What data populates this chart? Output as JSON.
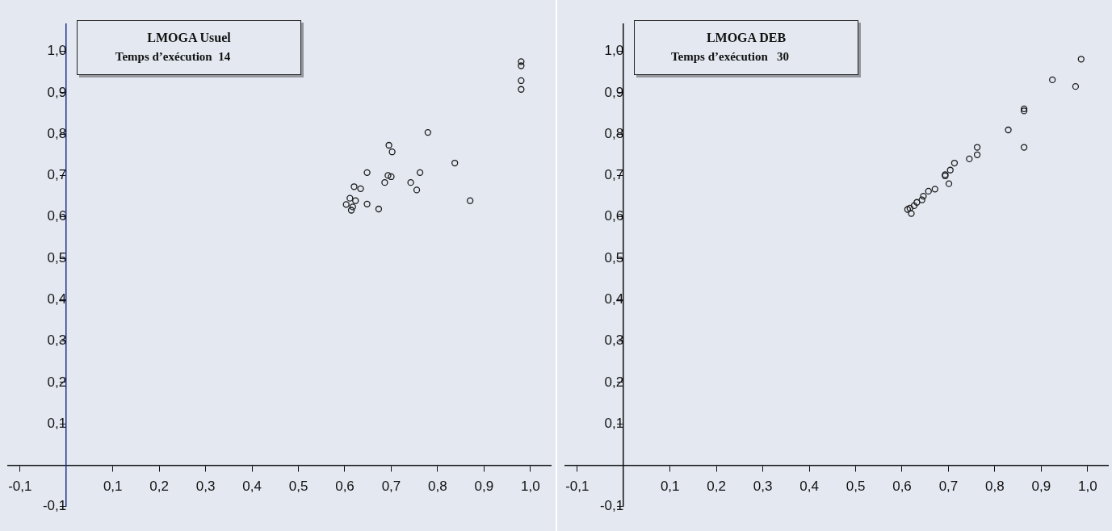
{
  "chart_data": [
    {
      "type": "scatter",
      "title": "LMOGA Usuel",
      "subtitle": "Temps d’exécution  14",
      "grid": false,
      "marker": "circle",
      "xlim": [
        -0.127,
        1.045
      ],
      "ylim": [
        -0.1,
        1.065
      ],
      "xticks": [
        {
          "value": -0.1,
          "label": "-0,1"
        },
        {
          "value": 0.1,
          "label": "0,1"
        },
        {
          "value": 0.2,
          "label": "0,2"
        },
        {
          "value": 0.3,
          "label": "0,3"
        },
        {
          "value": 0.4,
          "label": "0,4"
        },
        {
          "value": 0.5,
          "label": "0,5"
        },
        {
          "value": 0.6,
          "label": "0,6"
        },
        {
          "value": 0.7,
          "label": "0,7"
        },
        {
          "value": 0.8,
          "label": "0,8"
        },
        {
          "value": 0.9,
          "label": "0,9"
        },
        {
          "value": 1.0,
          "label": "1,0"
        }
      ],
      "yticks": [
        {
          "value": -0.1,
          "label": "-0,1"
        },
        {
          "value": 0.1,
          "label": "0,1"
        },
        {
          "value": 0.2,
          "label": "0,2"
        },
        {
          "value": 0.3,
          "label": "0,3"
        },
        {
          "value": 0.4,
          "label": "0,4"
        },
        {
          "value": 0.5,
          "label": "0,5"
        },
        {
          "value": 0.6,
          "label": "0,6"
        },
        {
          "value": 0.7,
          "label": "0,7"
        },
        {
          "value": 0.8,
          "label": "0,8"
        },
        {
          "value": 0.9,
          "label": "0,9"
        },
        {
          "value": 1.0,
          "label": "1,0"
        }
      ],
      "series": [
        {
          "color": "#1a1a1a",
          "x": [
            0.98,
            0.98,
            0.98,
            0.98,
            0.779,
            0.695,
            0.702,
            0.837,
            0.648,
            0.762,
            0.693,
            0.7,
            0.686,
            0.742,
            0.755,
            0.62,
            0.634,
            0.87,
            0.648,
            0.673,
            0.611,
            0.623,
            0.603,
            0.617,
            0.614
          ],
          "values": [
            0.975,
            0.965,
            0.929,
            0.908,
            0.804,
            0.773,
            0.757,
            0.73,
            0.707,
            0.707,
            0.7,
            0.697,
            0.683,
            0.683,
            0.665,
            0.673,
            0.668,
            0.639,
            0.631,
            0.619,
            0.645,
            0.639,
            0.63,
            0.624,
            0.616
          ]
        }
      ]
    },
    {
      "type": "scatter",
      "title": "LMOGA DEB",
      "subtitle": "Temps d’exécution   30",
      "grid": false,
      "marker": "circle",
      "xlim": [
        -0.127,
        1.045
      ],
      "ylim": [
        -0.1,
        1.065
      ],
      "xticks": [
        {
          "value": -0.1,
          "label": "-0,1"
        },
        {
          "value": 0.1,
          "label": "0,1"
        },
        {
          "value": 0.2,
          "label": "0,2"
        },
        {
          "value": 0.3,
          "label": "0,3"
        },
        {
          "value": 0.4,
          "label": "0,4"
        },
        {
          "value": 0.5,
          "label": "0,5"
        },
        {
          "value": 0.6,
          "label": "0,6"
        },
        {
          "value": 0.7,
          "label": "0,7"
        },
        {
          "value": 0.8,
          "label": "0,8"
        },
        {
          "value": 0.9,
          "label": "0,9"
        },
        {
          "value": 1.0,
          "label": "1,0"
        }
      ],
      "yticks": [
        {
          "value": -0.1,
          "label": "-0,1"
        },
        {
          "value": 0.1,
          "label": "0,1"
        },
        {
          "value": 0.2,
          "label": "0,2"
        },
        {
          "value": 0.3,
          "label": "0,3"
        },
        {
          "value": 0.4,
          "label": "0,4"
        },
        {
          "value": 0.5,
          "label": "0,5"
        },
        {
          "value": 0.6,
          "label": "0,6"
        },
        {
          "value": 0.7,
          "label": "0,7"
        },
        {
          "value": 0.8,
          "label": "0,8"
        },
        {
          "value": 0.9,
          "label": "0,9"
        },
        {
          "value": 1.0,
          "label": "1,0"
        }
      ],
      "series": [
        {
          "color": "#1a1a1a",
          "x": [
            0.986,
            0.924,
            0.974,
            0.863,
            0.863,
            0.829,
            0.863,
            0.762,
            0.762,
            0.745,
            0.713,
            0.704,
            0.693,
            0.693,
            0.701,
            0.671,
            0.657,
            0.646,
            0.643,
            0.632,
            0.626,
            0.617,
            0.612,
            0.62
          ],
          "values": [
            0.981,
            0.931,
            0.915,
            0.861,
            0.856,
            0.81,
            0.768,
            0.768,
            0.75,
            0.74,
            0.73,
            0.713,
            0.702,
            0.699,
            0.68,
            0.667,
            0.662,
            0.65,
            0.641,
            0.635,
            0.627,
            0.621,
            0.618,
            0.608
          ]
        }
      ]
    }
  ]
}
